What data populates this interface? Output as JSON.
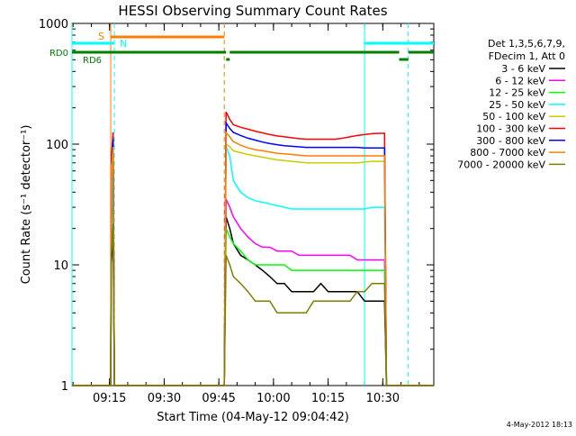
{
  "colors": {
    "axis": "#000000",
    "rd0": "#007f00",
    "attenuator": "#ff7f00",
    "night": "#00ffff",
    "saa_dash": "#00ffff"
  },
  "chart_data": {
    "type": "line",
    "title": "HESSI Observing Summary Count Rates",
    "xlabel": "Start Time (04-May-12 09:04:42)",
    "ylabel": "Count Rate (s⁻¹ detector⁻¹)",
    "x_scale": "time",
    "y_scale": "log",
    "xlim": [
      "09:04:42",
      "10:44:00"
    ],
    "ylim": [
      1,
      1000
    ],
    "x_ticks": [
      "09:15",
      "09:30",
      "09:45",
      "10:00",
      "10:15",
      "10:30"
    ],
    "y_ticks": [
      "1",
      "10",
      "100",
      "1000"
    ],
    "grid": false,
    "legend_position": "right",
    "legend_header": [
      "Det 1,3,5,6,7,9,",
      "FDecim 1, Att 0"
    ],
    "footer_date": "4-May-2012 18:13",
    "flag_labels": {
      "s": "S",
      "n": "N",
      "rd0": "RD0",
      "rd6": "RD6"
    },
    "orbit_x": [
      "09:04:42",
      "09:15:20",
      "09:15:30",
      "09:16:00",
      "09:16:20",
      "09:46:30",
      "09:47:00",
      "09:48:00",
      "09:49:00",
      "09:51:00",
      "09:53:00",
      "09:55:00",
      "09:57:00",
      "09:59:00",
      "10:01:00",
      "10:03:00",
      "10:05:00",
      "10:07:00",
      "10:09:00",
      "10:11:00",
      "10:13:00",
      "10:15:00",
      "10:17:00",
      "10:19:00",
      "10:21:00",
      "10:23:00",
      "10:25:00",
      "10:27:00",
      "10:29:00",
      "10:30:30",
      "10:31:00",
      "10:44:00"
    ],
    "series": [
      {
        "name": "3 - 6 keV",
        "color": "#000000",
        "values": [
          1,
          1,
          10,
          20,
          1,
          1,
          25,
          20,
          15,
          12,
          11,
          10,
          9,
          8,
          7,
          7,
          6,
          6,
          6,
          6,
          7,
          6,
          6,
          6,
          6,
          6,
          5,
          5,
          5,
          5,
          1,
          1
        ]
      },
      {
        "name": "6 - 12 keV",
        "color": "#ff00ff",
        "values": [
          1,
          1,
          30,
          65,
          1,
          1,
          35,
          30,
          25,
          20,
          17,
          15,
          14,
          14,
          13,
          13,
          13,
          12,
          12,
          12,
          12,
          12,
          12,
          12,
          12,
          11,
          11,
          11,
          11,
          11,
          1,
          1
        ]
      },
      {
        "name": "12 - 25 keV",
        "color": "#00ff00",
        "values": [
          1,
          1,
          20,
          55,
          1,
          1,
          20,
          17,
          15,
          13,
          11,
          10,
          10,
          10,
          10,
          10,
          9,
          9,
          9,
          9,
          9,
          9,
          9,
          9,
          9,
          9,
          9,
          9,
          9,
          9,
          1,
          1
        ]
      },
      {
        "name": "25 - 50 keV",
        "color": "#00ffff",
        "values": [
          1,
          1,
          25,
          60,
          1,
          1,
          95,
          80,
          50,
          40,
          36,
          34,
          33,
          32,
          31,
          30,
          29,
          29,
          29,
          29,
          29,
          29,
          29,
          29,
          29,
          29,
          29,
          30,
          30,
          30,
          1,
          1
        ]
      },
      {
        "name": "50 - 100 keV",
        "color": "#cccc00",
        "values": [
          1,
          1,
          50,
          80,
          1,
          1,
          100,
          95,
          88,
          85,
          82,
          80,
          78,
          76,
          74,
          73,
          72,
          71,
          70,
          70,
          70,
          70,
          70,
          70,
          70,
          70,
          71,
          72,
          72,
          72,
          1,
          1
        ]
      },
      {
        "name": "100 - 300 keV",
        "color": "#ff0000",
        "values": [
          1,
          1,
          75,
          125,
          1,
          1,
          185,
          160,
          145,
          138,
          133,
          128,
          124,
          120,
          117,
          115,
          113,
          111,
          110,
          110,
          110,
          110,
          110,
          112,
          115,
          118,
          120,
          122,
          123,
          123,
          1,
          1
        ]
      },
      {
        "name": "300 - 800 keV",
        "color": "#0000ff",
        "values": [
          1,
          1,
          70,
          110,
          1,
          1,
          150,
          135,
          125,
          118,
          112,
          108,
          104,
          101,
          99,
          97,
          96,
          95,
          94,
          94,
          94,
          94,
          94,
          94,
          94,
          94,
          93,
          93,
          93,
          93,
          1,
          1
        ]
      },
      {
        "name": "800 - 7000 keV",
        "color": "#ff7f00",
        "values": [
          1,
          1,
          65,
          95,
          1,
          1,
          125,
          115,
          105,
          98,
          93,
          90,
          88,
          86,
          84,
          83,
          82,
          81,
          80,
          80,
          80,
          80,
          80,
          80,
          80,
          80,
          80,
          80,
          80,
          80,
          1,
          1
        ]
      },
      {
        "name": "7000 - 20000 keV",
        "color": "#7f7f00",
        "values": [
          1,
          1,
          12,
          22,
          1,
          1,
          12,
          10,
          8,
          7,
          6,
          5,
          5,
          5,
          4,
          4,
          4,
          4,
          4,
          5,
          5,
          5,
          5,
          5,
          5,
          6,
          6,
          7,
          7,
          7,
          1,
          1
        ]
      }
    ],
    "markers": {
      "night_solid": [
        "09:04:42",
        "10:25:00"
      ],
      "orbit_dashed": [
        "09:16:20",
        "10:37:00"
      ],
      "attenuator_solid": "09:15:20",
      "attenuator_dashed": "09:46:30",
      "s_flag": [
        "09:15:20",
        "09:46:30"
      ],
      "n_flag": [
        [
          "09:04:42",
          "09:16:20"
        ],
        [
          "10:25:00",
          "10:44:00"
        ]
      ],
      "rd0_flag": [
        [
          "09:04:42",
          "09:47:00"
        ],
        [
          "09:48:00",
          "10:34:30"
        ],
        [
          "10:37:00",
          "10:44:00"
        ]
      ]
    }
  }
}
